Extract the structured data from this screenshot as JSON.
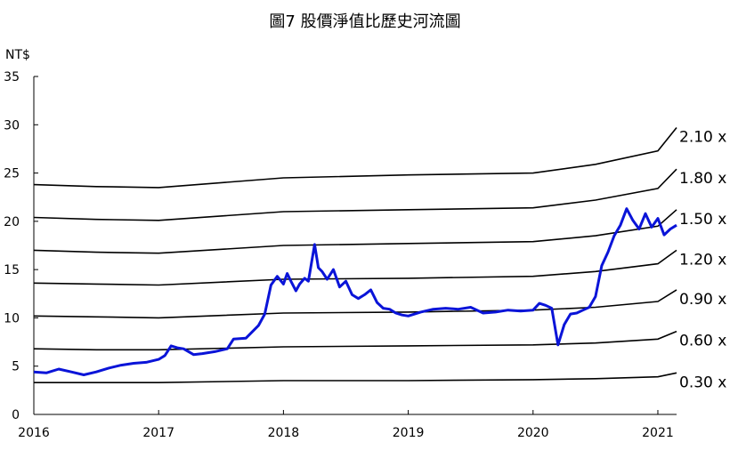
{
  "chart_data": {
    "type": "line",
    "title": "圖7 股價淨值比歷史河流圖",
    "unit": "NT$",
    "ylim": [
      0,
      35
    ],
    "y_ticks": [
      0,
      5,
      10,
      15,
      20,
      25,
      30,
      35
    ],
    "xlim": [
      2016,
      2021.15
    ],
    "x_ticks": [
      2016,
      2017,
      2018,
      2019,
      2020,
      2021
    ],
    "grid": false,
    "colors": {
      "price": "#0a14d8",
      "bands": "#000000"
    },
    "pbr_bands": [
      {
        "label": "0.30 x",
        "x": [
          2016,
          2016.5,
          2017,
          2018,
          2019,
          2020,
          2020.5,
          2021,
          2021.15
        ],
        "y": [
          3.3,
          3.3,
          3.3,
          3.5,
          3.5,
          3.6,
          3.7,
          3.9,
          4.3
        ]
      },
      {
        "label": "0.60 x",
        "x": [
          2016,
          2016.5,
          2017,
          2018,
          2019,
          2020,
          2020.5,
          2021,
          2021.15
        ],
        "y": [
          6.8,
          6.7,
          6.7,
          7.0,
          7.1,
          7.2,
          7.4,
          7.8,
          8.6
        ]
      },
      {
        "label": "0.90 x",
        "x": [
          2016,
          2016.5,
          2017,
          2018,
          2019,
          2020,
          2020.5,
          2021,
          2021.15
        ],
        "y": [
          10.2,
          10.1,
          10.0,
          10.5,
          10.6,
          10.8,
          11.1,
          11.7,
          12.9
        ]
      },
      {
        "label": "1.20 x",
        "x": [
          2016,
          2016.5,
          2017,
          2018,
          2019,
          2020,
          2020.5,
          2021,
          2021.15
        ],
        "y": [
          13.6,
          13.5,
          13.4,
          14.0,
          14.1,
          14.3,
          14.8,
          15.6,
          17.0
        ]
      },
      {
        "label": "1.50 x",
        "x": [
          2016,
          2016.5,
          2017,
          2018,
          2019,
          2020,
          2020.5,
          2021,
          2021.15
        ],
        "y": [
          17.0,
          16.8,
          16.7,
          17.5,
          17.7,
          17.9,
          18.5,
          19.5,
          21.2
        ]
      },
      {
        "label": "1.80 x",
        "x": [
          2016,
          2016.5,
          2017,
          2018,
          2019,
          2020,
          2020.5,
          2021,
          2021.15
        ],
        "y": [
          20.4,
          20.2,
          20.1,
          21.0,
          21.2,
          21.4,
          22.2,
          23.4,
          25.4
        ]
      },
      {
        "label": "2.10 x",
        "x": [
          2016,
          2016.5,
          2017,
          2018,
          2019,
          2020,
          2020.5,
          2021,
          2021.15
        ],
        "y": [
          23.8,
          23.6,
          23.5,
          24.5,
          24.8,
          25.0,
          25.9,
          27.3,
          29.7
        ]
      }
    ],
    "price_series": {
      "x": [
        2016.0,
        2016.1,
        2016.2,
        2016.3,
        2016.4,
        2016.5,
        2016.6,
        2016.7,
        2016.8,
        2016.9,
        2017.0,
        2017.05,
        2017.1,
        2017.15,
        2017.2,
        2017.28,
        2017.35,
        2017.45,
        2017.55,
        2017.6,
        2017.7,
        2017.8,
        2017.85,
        2017.9,
        2017.95,
        2018.0,
        2018.03,
        2018.06,
        2018.1,
        2018.13,
        2018.17,
        2018.2,
        2018.25,
        2018.28,
        2018.31,
        2018.35,
        2018.4,
        2018.45,
        2018.5,
        2018.55,
        2018.6,
        2018.65,
        2018.7,
        2018.75,
        2018.8,
        2018.85,
        2018.9,
        2018.95,
        2019.0,
        2019.1,
        2019.2,
        2019.3,
        2019.4,
        2019.5,
        2019.6,
        2019.7,
        2019.8,
        2019.9,
        2020.0,
        2020.05,
        2020.1,
        2020.15,
        2020.2,
        2020.25,
        2020.3,
        2020.35,
        2020.4,
        2020.45,
        2020.5,
        2020.55,
        2020.6,
        2020.65,
        2020.7,
        2020.75,
        2020.8,
        2020.85,
        2020.9,
        2020.95,
        2021.0,
        2021.05,
        2021.1,
        2021.15
      ],
      "y": [
        4.4,
        4.3,
        4.7,
        4.4,
        4.1,
        4.4,
        4.8,
        5.1,
        5.3,
        5.4,
        5.7,
        6.1,
        7.1,
        6.9,
        6.8,
        6.2,
        6.3,
        6.5,
        6.8,
        7.8,
        7.9,
        9.2,
        10.4,
        13.4,
        14.3,
        13.5,
        14.6,
        13.8,
        12.8,
        13.5,
        14.1,
        13.8,
        17.6,
        15.2,
        14.8,
        14.0,
        15.0,
        13.2,
        13.8,
        12.4,
        12.0,
        12.4,
        12.9,
        11.6,
        11.0,
        10.9,
        10.5,
        10.3,
        10.2,
        10.6,
        10.9,
        11.0,
        10.9,
        11.1,
        10.5,
        10.6,
        10.8,
        10.7,
        10.8,
        11.5,
        11.3,
        11.0,
        7.2,
        9.3,
        10.4,
        10.5,
        10.8,
        11.1,
        12.2,
        15.4,
        16.8,
        18.5,
        19.6,
        21.3,
        20.1,
        19.2,
        20.8,
        19.4,
        20.3,
        18.6,
        19.2,
        19.6
      ]
    }
  }
}
